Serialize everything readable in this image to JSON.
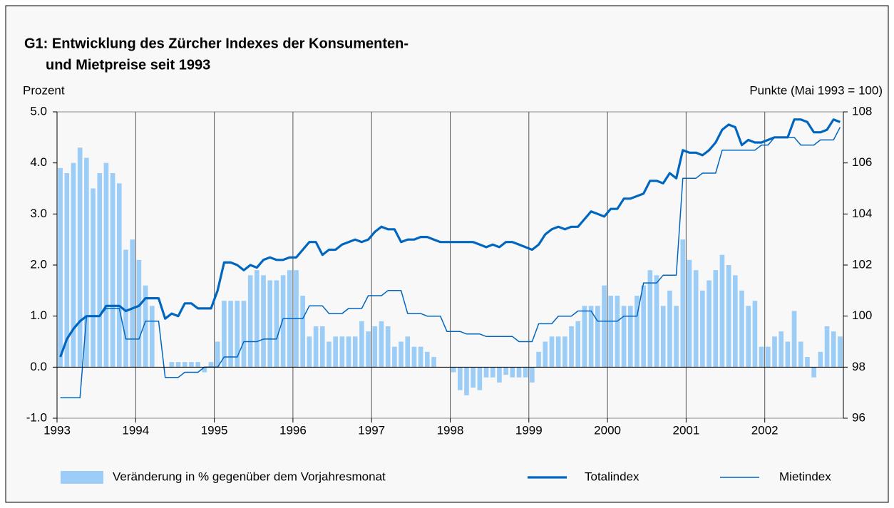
{
  "chart_data": {
    "type": "bar",
    "title": [
      "G1: Entwicklung des Zürcher Indexes der Konsumenten-",
      "und Mietpreise seit 1993"
    ],
    "ylabel": "Prozent",
    "y2label": "Punkte (Mai 1993 = 100)",
    "categories": [
      "1993",
      null,
      null,
      null,
      null,
      null,
      null,
      null,
      null,
      null,
      null,
      null,
      "1994",
      null,
      null,
      null,
      null,
      null,
      null,
      null,
      null,
      null,
      null,
      null,
      "1995",
      null,
      null,
      null,
      null,
      null,
      null,
      null,
      null,
      null,
      null,
      null,
      "1996",
      null,
      null,
      null,
      null,
      null,
      null,
      null,
      null,
      null,
      null,
      null,
      "1997",
      null,
      null,
      null,
      null,
      null,
      null,
      null,
      null,
      null,
      null,
      null,
      "1998",
      null,
      null,
      null,
      null,
      null,
      null,
      null,
      null,
      null,
      null,
      null,
      "1999",
      null,
      null,
      null,
      null,
      null,
      null,
      null,
      null,
      null,
      null,
      null,
      "2000",
      null,
      null,
      null,
      null,
      null,
      null,
      null,
      null,
      null,
      null,
      null,
      "2001",
      null,
      null,
      null,
      null,
      null,
      null,
      null,
      null,
      null,
      null,
      null,
      "2002",
      null,
      null,
      null,
      null,
      null,
      null,
      null,
      null,
      null,
      null,
      null
    ],
    "ylim": [
      -1,
      5
    ],
    "yticks": [
      {
        "value": -1,
        "label": "-1.0"
      },
      {
        "value": 0,
        "label": "0.0"
      },
      {
        "value": 1,
        "label": "1.0"
      },
      {
        "value": 2,
        "label": "2.0"
      },
      {
        "value": 3,
        "label": "3.0"
      },
      {
        "value": 4,
        "label": "4.0"
      },
      {
        "value": 5,
        "label": "5.0"
      }
    ],
    "y2lim": [
      96,
      108
    ],
    "y2ticks": [
      96,
      98,
      100,
      102,
      104,
      106,
      108
    ],
    "grid": true,
    "series": [
      {
        "name": "Veränderung in % gegenüber dem Vorjahresmonat",
        "type": "bar",
        "color": "#9ccdf7",
        "values": [
          3.9,
          3.8,
          4.0,
          4.3,
          4.1,
          3.5,
          3.8,
          4.0,
          3.8,
          3.6,
          2.3,
          2.5,
          2.1,
          1.6,
          1.2,
          0.0,
          0.0,
          0.1,
          0.1,
          0.1,
          0.1,
          0.1,
          -0.1,
          0.1,
          0.5,
          1.3,
          1.3,
          1.3,
          1.3,
          1.8,
          1.9,
          1.8,
          1.7,
          1.7,
          1.8,
          1.9,
          1.9,
          1.4,
          0.6,
          0.8,
          0.8,
          0.5,
          0.6,
          0.6,
          0.6,
          0.6,
          0.9,
          0.7,
          0.8,
          0.9,
          0.8,
          0.4,
          0.5,
          0.6,
          0.4,
          0.4,
          0.3,
          0.2,
          0.0,
          0.0,
          -0.1,
          -0.45,
          -0.55,
          -0.4,
          -0.45,
          -0.2,
          -0.2,
          -0.3,
          -0.15,
          -0.2,
          -0.2,
          -0.2,
          -0.3,
          0.3,
          0.5,
          0.6,
          0.6,
          0.6,
          0.8,
          0.9,
          1.2,
          1.2,
          1.2,
          1.6,
          1.4,
          1.4,
          1.2,
          1.2,
          1.4,
          1.6,
          1.9,
          1.8,
          1.2,
          1.5,
          1.2,
          2.5,
          2.1,
          1.9,
          1.5,
          1.7,
          1.9,
          2.2,
          2.0,
          1.8,
          1.5,
          1.2,
          1.3,
          0.4,
          0.4,
          0.6,
          0.7,
          0.5,
          1.1,
          0.5,
          0.2,
          -0.2,
          0.3,
          0.8,
          0.7,
          0.6
        ]
      },
      {
        "name": "Totalindex",
        "type": "line",
        "axis": "y2",
        "color": "#0066c0",
        "values": [
          98.4,
          99.1,
          99.5,
          99.8,
          100.0,
          100.0,
          100.0,
          100.4,
          100.4,
          100.4,
          100.2,
          100.3,
          100.4,
          100.7,
          100.7,
          100.7,
          99.9,
          100.1,
          100.0,
          100.5,
          100.5,
          100.3,
          100.3,
          100.3,
          101.0,
          102.1,
          102.1,
          102.0,
          101.8,
          102.0,
          101.9,
          102.2,
          102.3,
          102.2,
          102.2,
          102.3,
          102.3,
          102.6,
          102.9,
          102.9,
          102.4,
          102.6,
          102.6,
          102.8,
          102.9,
          103.0,
          102.9,
          103.0,
          103.3,
          103.5,
          103.4,
          103.4,
          102.9,
          103.0,
          103.0,
          103.1,
          103.1,
          103.0,
          102.9,
          102.9,
          102.9,
          102.9,
          102.9,
          102.9,
          102.8,
          102.7,
          102.8,
          102.7,
          102.9,
          102.9,
          102.8,
          102.7,
          102.6,
          102.8,
          103.2,
          103.4,
          103.5,
          103.4,
          103.5,
          103.5,
          103.8,
          104.1,
          104.0,
          103.9,
          104.2,
          104.2,
          104.6,
          104.6,
          104.7,
          104.8,
          105.3,
          105.3,
          105.2,
          105.6,
          105.4,
          106.5,
          106.4,
          106.4,
          106.3,
          106.5,
          106.8,
          107.3,
          107.5,
          107.4,
          106.7,
          106.9,
          106.8,
          106.8,
          106.9,
          107.0,
          107.0,
          107.0,
          107.7,
          107.7,
          107.6,
          107.2,
          107.2,
          107.3,
          107.7,
          107.6
        ]
      },
      {
        "name": "Mietindex",
        "type": "line",
        "axis": "y2",
        "color": "#0066c0",
        "values": [
          96.8,
          96.8,
          96.8,
          96.8,
          100.0,
          100.0,
          100.0,
          100.3,
          100.3,
          100.3,
          99.1,
          99.1,
          99.1,
          99.8,
          99.8,
          99.8,
          97.6,
          97.6,
          97.6,
          97.8,
          97.8,
          97.8,
          98.0,
          98.0,
          98.0,
          98.4,
          98.4,
          98.4,
          99.0,
          99.0,
          99.0,
          99.1,
          99.1,
          99.1,
          99.9,
          99.9,
          99.9,
          99.9,
          100.4,
          100.4,
          100.4,
          100.1,
          100.1,
          100.1,
          100.3,
          100.3,
          100.3,
          100.8,
          100.8,
          100.8,
          101.0,
          101.0,
          101.0,
          100.1,
          100.1,
          100.1,
          100.0,
          100.0,
          100.0,
          99.4,
          99.4,
          99.4,
          99.3,
          99.3,
          99.3,
          99.2,
          99.2,
          99.2,
          99.2,
          99.2,
          99.0,
          99.0,
          99.0,
          99.7,
          99.7,
          99.7,
          100.0,
          100.0,
          100.0,
          100.2,
          100.2,
          100.2,
          99.8,
          99.8,
          99.8,
          99.8,
          100.0,
          100.0,
          100.0,
          101.3,
          101.3,
          101.3,
          101.6,
          101.6,
          101.6,
          105.4,
          105.4,
          105.4,
          105.6,
          105.6,
          105.6,
          106.5,
          106.5,
          106.5,
          106.5,
          106.5,
          106.5,
          106.7,
          106.7,
          107.0,
          107.0,
          107.0,
          107.0,
          106.7,
          106.7,
          106.7,
          106.9,
          106.9,
          106.9,
          107.4
        ]
      }
    ]
  }
}
